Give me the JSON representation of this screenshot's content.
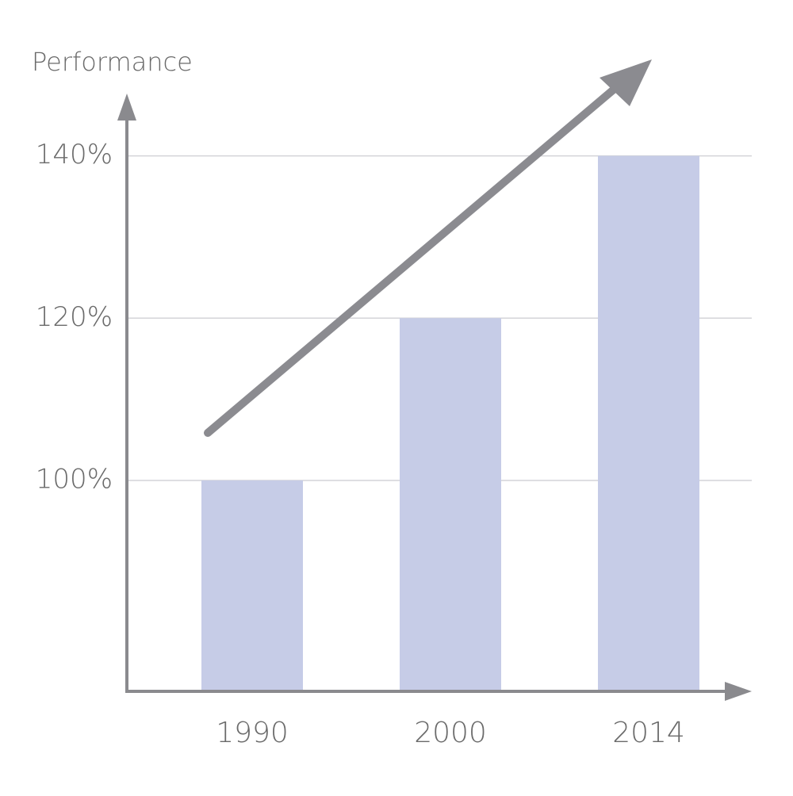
{
  "chart_data": {
    "type": "bar",
    "y_label": "Performance",
    "categories": [
      "1990",
      "2000",
      "2014"
    ],
    "values": [
      100,
      120,
      140
    ],
    "color": "#c6cce7",
    "ylim": [
      74,
      147
    ],
    "yticks": [
      {
        "value": 100,
        "label": "100%"
      },
      {
        "value": 120,
        "label": "120%"
      },
      {
        "value": 140,
        "label": "140%"
      }
    ],
    "grid": true
  }
}
